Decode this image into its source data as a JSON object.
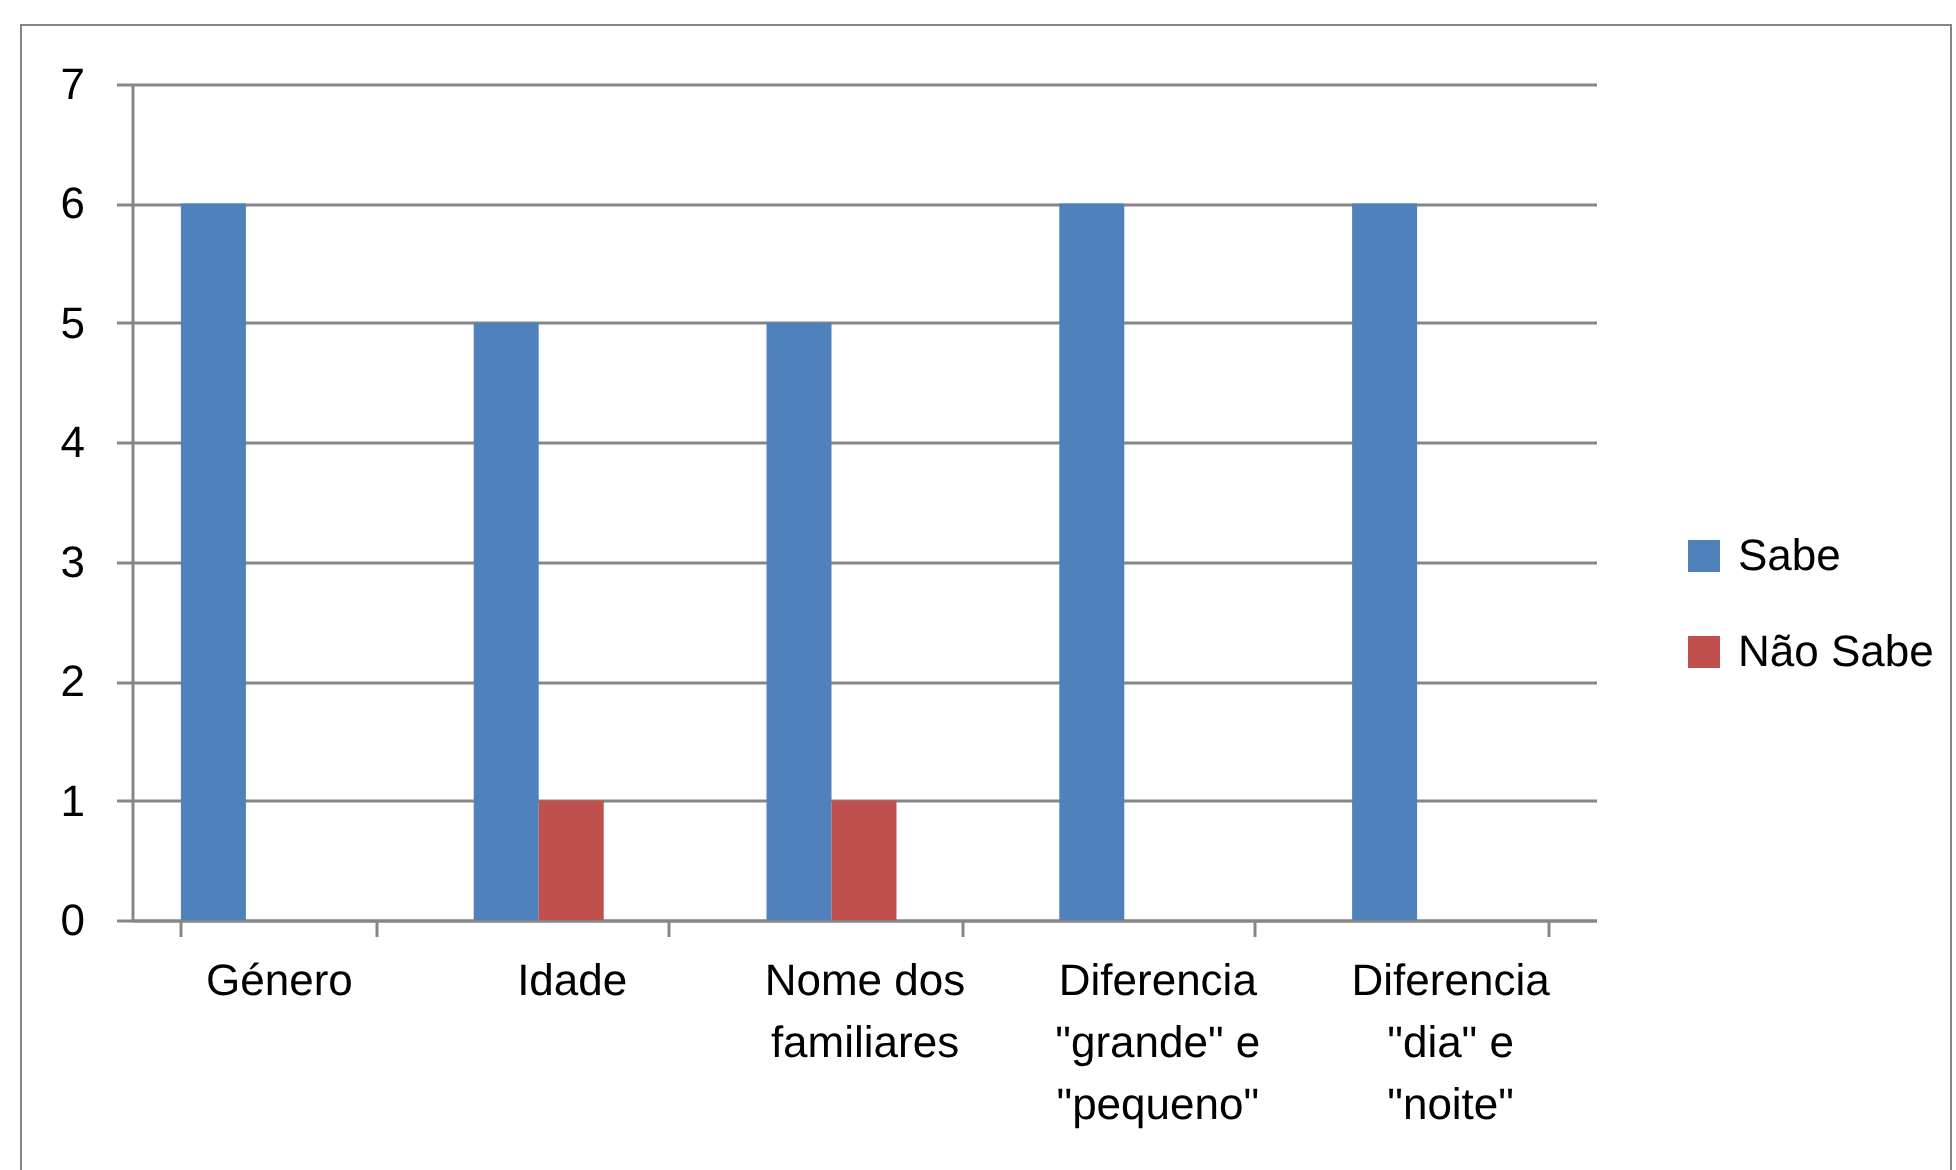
{
  "chart_data": {
    "type": "bar",
    "categories": [
      "Género",
      "Idade",
      "Nome dos familiares",
      "Diferencia \"grande\" e \"pequeno\"",
      "Diferencia \"dia\" e \"noite\""
    ],
    "series": [
      {
        "name": "Sabe",
        "color": "#4f81bd",
        "values": [
          6,
          5,
          5,
          6,
          6
        ]
      },
      {
        "name": "Não Sabe",
        "color": "#c0504d",
        "values": [
          0,
          1,
          1,
          0,
          0
        ]
      }
    ],
    "ylim": [
      0,
      7
    ],
    "yticks": [
      0,
      1,
      2,
      3,
      4,
      5,
      6,
      7
    ],
    "grid": "y",
    "legend": "right"
  }
}
